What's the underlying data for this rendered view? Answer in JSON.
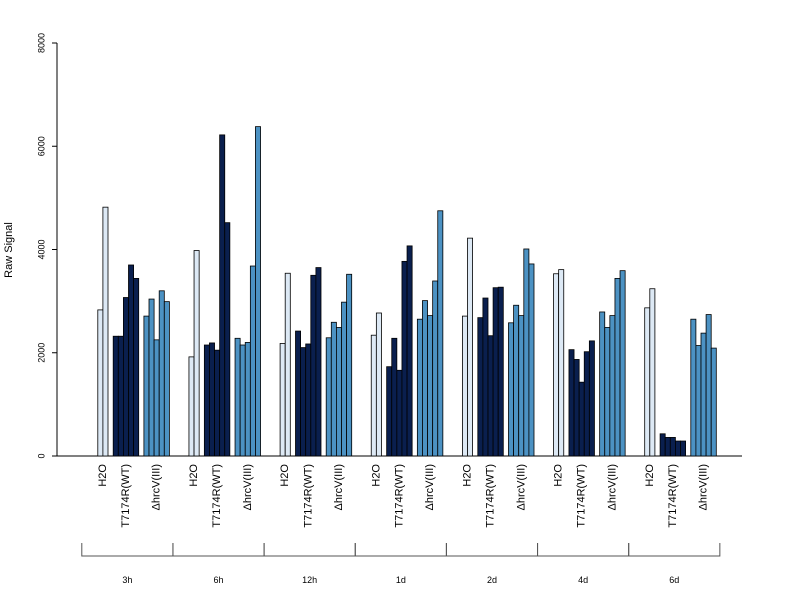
{
  "chart_data": {
    "type": "bar",
    "title": "",
    "xlabel": "",
    "ylabel": "Raw Signal",
    "ylim": [
      0,
      8000
    ],
    "yticks": [
      0,
      2000,
      4000,
      6000,
      8000
    ],
    "grid": false,
    "legend": "none",
    "conditions": [
      "H2O",
      "T7174R(WT)",
      "ΔhrcV(III)"
    ],
    "condition_colors": {
      "H2O": "#dde9f5",
      "T7174R(WT)": "#0a1f4e",
      "ΔhrcV(III)": "#4c92c3"
    },
    "groups": [
      {
        "time": "3h",
        "series": [
          {
            "condition": "H2O",
            "values": [
              2830,
              4820
            ]
          },
          {
            "condition": "T7174R(WT)",
            "values": [
              2320,
              2320,
              3070,
              3700,
              3440
            ]
          },
          {
            "condition": "ΔhrcV(III)",
            "values": [
              2710,
              3040,
              2250,
              3200,
              2990
            ]
          }
        ]
      },
      {
        "time": "6h",
        "series": [
          {
            "condition": "H2O",
            "values": [
              1920,
              3980
            ]
          },
          {
            "condition": "T7174R(WT)",
            "values": [
              2150,
              2190,
              2050,
              6220,
              4520
            ]
          },
          {
            "condition": "ΔhrcV(III)",
            "values": [
              2280,
              2150,
              2200,
              3680,
              6380
            ]
          }
        ]
      },
      {
        "time": "12h",
        "series": [
          {
            "condition": "H2O",
            "values": [
              2180,
              3540
            ]
          },
          {
            "condition": "T7174R(WT)",
            "values": [
              2420,
              2100,
              2170,
              3500,
              3650
            ]
          },
          {
            "condition": "ΔhrcV(III)",
            "values": [
              2290,
              2590,
              2490,
              2980,
              3520
            ]
          }
        ]
      },
      {
        "time": "1d",
        "series": [
          {
            "condition": "H2O",
            "values": [
              2340,
              2770
            ]
          },
          {
            "condition": "T7174R(WT)",
            "values": [
              1730,
              2280,
              1660,
              3770,
              4070
            ]
          },
          {
            "condition": "ΔhrcV(III)",
            "values": [
              2650,
              3010,
              2720,
              3390,
              4750
            ]
          }
        ]
      },
      {
        "time": "2d",
        "series": [
          {
            "condition": "H2O",
            "values": [
              2710,
              4220
            ]
          },
          {
            "condition": "T7174R(WT)",
            "values": [
              2680,
              3060,
              2330,
              3260,
              3270
            ]
          },
          {
            "condition": "ΔhrcV(III)",
            "values": [
              2580,
              2920,
              2720,
              4010,
              3720
            ]
          }
        ]
      },
      {
        "time": "4d",
        "series": [
          {
            "condition": "H2O",
            "values": [
              3530,
              3610
            ]
          },
          {
            "condition": "T7174R(WT)",
            "values": [
              2060,
              1870,
              1430,
              2020,
              2230
            ]
          },
          {
            "condition": "ΔhrcV(III)",
            "values": [
              2790,
              2490,
              2720,
              3440,
              3590
            ]
          }
        ]
      },
      {
        "time": "6d",
        "series": [
          {
            "condition": "H2O",
            "values": [
              2870,
              3240
            ]
          },
          {
            "condition": "T7174R(WT)",
            "values": [
              430,
              360,
              360,
              290,
              290
            ]
          },
          {
            "condition": "ΔhrcV(III)",
            "values": [
              2650,
              2140,
              2380,
              2740,
              2090
            ]
          }
        ]
      }
    ]
  }
}
